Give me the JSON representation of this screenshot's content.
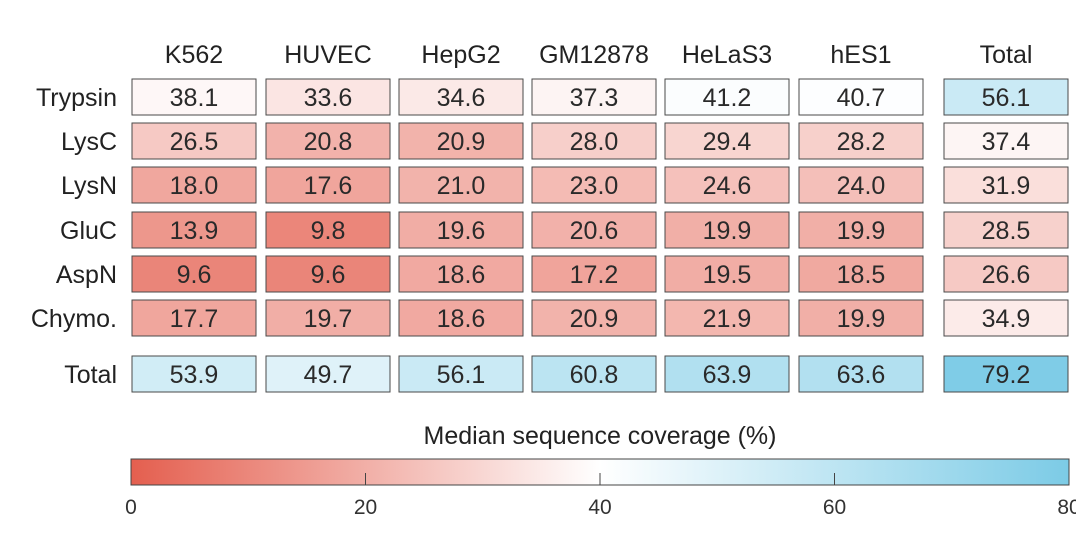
{
  "chart_data": {
    "type": "heatmap",
    "columns": [
      "K562",
      "HUVEC",
      "HepG2",
      "GM12878",
      "HeLaS3",
      "hES1"
    ],
    "total_column_label": "Total",
    "rows": [
      "Trypsin",
      "LysC",
      "LysN",
      "GluC",
      "AspN",
      "Chymo."
    ],
    "total_row_label": "Total",
    "values": [
      [
        38.1,
        33.6,
        34.6,
        37.3,
        41.2,
        40.7
      ],
      [
        26.5,
        20.8,
        20.9,
        28.0,
        29.4,
        28.2
      ],
      [
        18.0,
        17.6,
        21.0,
        23.0,
        24.6,
        24.0
      ],
      [
        13.9,
        9.8,
        19.6,
        20.6,
        19.9,
        19.9
      ],
      [
        9.6,
        9.6,
        18.6,
        17.2,
        19.5,
        18.5
      ],
      [
        17.7,
        19.7,
        18.6,
        20.9,
        21.9,
        19.9
      ]
    ],
    "row_totals": [
      56.1,
      37.4,
      31.9,
      28.5,
      26.6,
      34.9
    ],
    "column_totals": [
      53.9,
      49.7,
      56.1,
      60.8,
      63.9,
      63.6
    ],
    "grand_total": 79.2,
    "colorbar": {
      "title": "Median sequence coverage (%)",
      "range": [
        0,
        80
      ],
      "ticks": [
        0,
        20,
        40,
        60,
        80
      ],
      "colors": {
        "low": "#e45f4f",
        "mid": "#ffffff",
        "high": "#7ccbe6"
      },
      "mid_value": 40
    }
  }
}
